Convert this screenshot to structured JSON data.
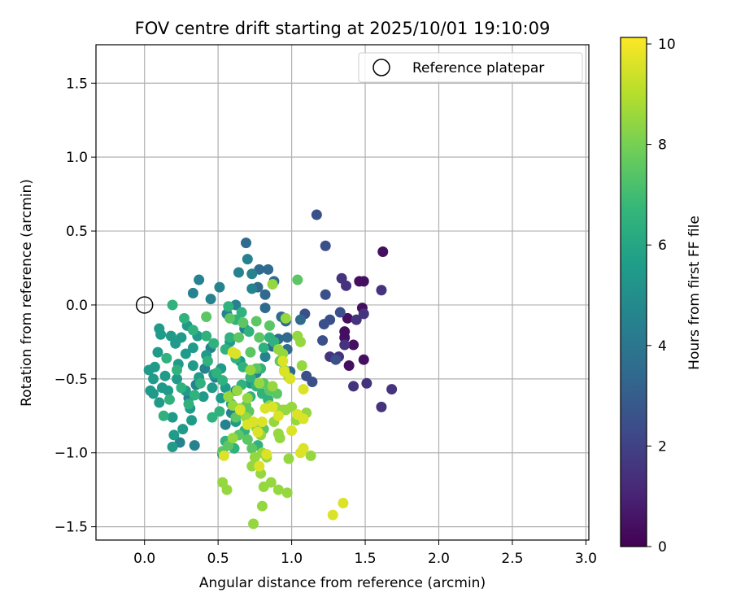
{
  "chart_data": {
    "type": "scatter",
    "title": "FOV centre drift starting at 2025/10/01 19:10:09",
    "xlabel": "Angular distance from reference (arcmin)",
    "ylabel": "Rotation from reference (arcmin)",
    "xlim": [
      -0.33,
      3.02
    ],
    "ylim": [
      -1.59,
      1.76
    ],
    "xticks": [
      0.0,
      0.5,
      1.0,
      1.5,
      2.0,
      2.5,
      3.0
    ],
    "xtick_labels": [
      "0.0",
      "0.5",
      "1.0",
      "1.5",
      "2.0",
      "2.5",
      "3.0"
    ],
    "yticks": [
      -1.5,
      -1.0,
      -0.5,
      0.0,
      0.5,
      1.0,
      1.5
    ],
    "ytick_labels": [
      "−1.5",
      "−1.0",
      "−0.5",
      "0.0",
      "0.5",
      "1.0",
      "1.5"
    ],
    "grid": true,
    "legend": {
      "position": "top-right",
      "entries": [
        "Reference platepar"
      ]
    },
    "reference_point": {
      "x": 0.0,
      "y": 0.0,
      "label": "Reference platepar"
    },
    "colorbar": {
      "label": "Hours from first FF file",
      "min": 0,
      "max": 10.13,
      "ticks": [
        0,
        2,
        4,
        6,
        8,
        10
      ],
      "tick_labels": [
        "0",
        "2",
        "4",
        "6",
        "8",
        "10"
      ],
      "colormap": "viridis",
      "stops": [
        "#440154",
        "#482878",
        "#3e4989",
        "#31688e",
        "#26828e",
        "#1f9e89",
        "#35b779",
        "#6ece58",
        "#b5de2b",
        "#fde725"
      ]
    },
    "series": [
      {
        "name": "hour-0-1",
        "hours": 0.4,
        "points": [
          [
            1.62,
            0.36
          ],
          [
            1.46,
            0.16
          ],
          [
            1.49,
            0.16
          ],
          [
            1.48,
            -0.02
          ],
          [
            1.38,
            -0.09
          ],
          [
            1.36,
            -0.18
          ],
          [
            1.36,
            -0.22
          ],
          [
            1.42,
            -0.27
          ],
          [
            1.49,
            -0.37
          ],
          [
            1.39,
            -0.41
          ]
        ]
      },
      {
        "name": "hour-1-2",
        "hours": 1.5,
        "points": [
          [
            1.61,
            0.1
          ],
          [
            1.49,
            -0.06
          ],
          [
            1.44,
            -0.1
          ],
          [
            1.51,
            -0.53
          ],
          [
            1.68,
            -0.57
          ],
          [
            1.61,
            -0.69
          ],
          [
            1.42,
            -0.55
          ],
          [
            1.36,
            -0.27
          ],
          [
            1.37,
            0.13
          ],
          [
            1.34,
            0.18
          ],
          [
            1.32,
            -0.35
          ],
          [
            1.26,
            -0.35
          ]
        ]
      },
      {
        "name": "hour-2-3",
        "hours": 2.5,
        "points": [
          [
            1.17,
            0.61
          ],
          [
            1.23,
            0.4
          ],
          [
            1.23,
            0.07
          ],
          [
            1.26,
            -0.1
          ],
          [
            1.22,
            -0.13
          ],
          [
            1.21,
            -0.24
          ],
          [
            1.33,
            -0.05
          ],
          [
            1.3,
            -0.37
          ],
          [
            1.14,
            -0.52
          ],
          [
            1.1,
            -0.48
          ],
          [
            1.09,
            -0.06
          ]
        ]
      },
      {
        "name": "hour-3-4",
        "hours": 3.5,
        "points": [
          [
            0.69,
            0.42
          ],
          [
            0.78,
            0.24
          ],
          [
            0.84,
            0.24
          ],
          [
            0.88,
            0.16
          ],
          [
            0.82,
            0.07
          ],
          [
            0.77,
            0.12
          ],
          [
            0.82,
            -0.02
          ],
          [
            0.93,
            -0.08
          ],
          [
            0.96,
            -0.11
          ],
          [
            0.91,
            -0.23
          ],
          [
            0.87,
            -0.28
          ],
          [
            0.97,
            -0.3
          ],
          [
            0.99,
            -0.45
          ],
          [
            1.06,
            -0.1
          ],
          [
            0.97,
            -0.22
          ]
        ]
      },
      {
        "name": "hour-4-5",
        "hours": 4.5,
        "points": [
          [
            0.7,
            0.31
          ],
          [
            0.73,
            0.21
          ],
          [
            0.73,
            0.11
          ],
          [
            0.64,
            0.22
          ],
          [
            0.62,
            0.0
          ],
          [
            0.56,
            -0.06
          ],
          [
            0.51,
            0.12
          ],
          [
            0.45,
            0.04
          ],
          [
            0.37,
            0.17
          ],
          [
            0.33,
            0.08
          ],
          [
            0.45,
            -0.29
          ],
          [
            0.41,
            -0.43
          ],
          [
            0.48,
            -0.49
          ],
          [
            0.35,
            -0.54
          ],
          [
            0.3,
            -0.63
          ],
          [
            0.34,
            -0.95
          ],
          [
            0.24,
            -0.93
          ],
          [
            0.53,
            -1.01
          ],
          [
            0.55,
            -0.81
          ],
          [
            0.59,
            -0.73
          ],
          [
            0.62,
            -0.58
          ],
          [
            0.76,
            -0.46
          ],
          [
            0.82,
            -0.35
          ],
          [
            0.68,
            -0.16
          ]
        ]
      },
      {
        "name": "hour-5-6",
        "hours": 5.5,
        "points": [
          [
            0.1,
            -0.16
          ],
          [
            0.11,
            -0.2
          ],
          [
            0.09,
            -0.32
          ],
          [
            0.07,
            -0.42
          ],
          [
            0.03,
            -0.44
          ],
          [
            0.06,
            -0.5
          ],
          [
            0.04,
            -0.58
          ],
          [
            0.06,
            -0.6
          ],
          [
            0.1,
            -0.66
          ],
          [
            0.16,
            -0.58
          ],
          [
            0.19,
            -0.76
          ],
          [
            0.2,
            -0.88
          ],
          [
            0.19,
            -0.96
          ],
          [
            0.26,
            -0.84
          ],
          [
            0.32,
            -0.78
          ],
          [
            0.28,
            -0.58
          ],
          [
            0.22,
            -0.5
          ],
          [
            0.23,
            -0.4
          ],
          [
            0.28,
            -0.33
          ],
          [
            0.33,
            -0.41
          ],
          [
            0.37,
            -0.49
          ],
          [
            0.33,
            -0.29
          ],
          [
            0.25,
            -0.22
          ],
          [
            0.29,
            -0.14
          ],
          [
            0.36,
            -0.21
          ],
          [
            0.42,
            -0.34
          ],
          [
            0.46,
            -0.56
          ],
          [
            0.52,
            -0.63
          ],
          [
            0.55,
            -0.56
          ],
          [
            0.59,
            -0.67
          ],
          [
            0.62,
            -0.79
          ],
          [
            0.72,
            -0.53
          ],
          [
            0.65,
            -0.38
          ],
          [
            0.58,
            -0.25
          ],
          [
            0.52,
            -0.43
          ],
          [
            0.47,
            -0.47
          ],
          [
            0.4,
            -0.62
          ],
          [
            0.31,
            -0.7
          ],
          [
            0.14,
            -0.48
          ],
          [
            0.12,
            -0.56
          ],
          [
            0.18,
            -0.21
          ],
          [
            0.21,
            -0.26
          ]
        ]
      },
      {
        "name": "hour-6-7",
        "hours": 6.5,
        "points": [
          [
            0.19,
            0.0
          ],
          [
            0.27,
            -0.09
          ],
          [
            0.33,
            -0.17
          ],
          [
            0.42,
            -0.21
          ],
          [
            0.47,
            -0.26
          ],
          [
            0.55,
            -0.3
          ],
          [
            0.62,
            -0.36
          ],
          [
            0.67,
            -0.42
          ],
          [
            0.72,
            -0.49
          ],
          [
            0.76,
            -0.55
          ],
          [
            0.8,
            -0.6
          ],
          [
            0.84,
            -0.64
          ],
          [
            0.57,
            -0.01
          ],
          [
            0.62,
            -0.1
          ],
          [
            0.66,
            -0.05
          ],
          [
            0.71,
            -0.18
          ],
          [
            0.81,
            -0.29
          ],
          [
            0.85,
            -0.22
          ],
          [
            0.88,
            -0.25
          ],
          [
            0.58,
            -0.22
          ],
          [
            0.49,
            -0.46
          ],
          [
            0.43,
            -0.38
          ],
          [
            0.38,
            -0.53
          ],
          [
            0.34,
            -0.61
          ],
          [
            0.3,
            -0.67
          ],
          [
            0.25,
            -0.56
          ],
          [
            0.17,
            -0.64
          ],
          [
            0.13,
            -0.75
          ],
          [
            0.46,
            -0.76
          ],
          [
            0.51,
            -0.72
          ],
          [
            0.55,
            -0.92
          ],
          [
            0.61,
            -0.97
          ],
          [
            0.68,
            -0.85
          ],
          [
            0.77,
            -0.95
          ],
          [
            0.72,
            -0.62
          ],
          [
            0.79,
            -0.43
          ],
          [
            0.66,
            -0.54
          ],
          [
            0.53,
            -0.51
          ],
          [
            0.22,
            -0.44
          ],
          [
            0.15,
            -0.36
          ]
        ]
      },
      {
        "name": "hour-7-8",
        "hours": 7.5,
        "points": [
          [
            0.42,
            -0.08
          ],
          [
            0.58,
            -0.09
          ],
          [
            0.64,
            -0.22
          ],
          [
            0.67,
            -0.12
          ],
          [
            0.76,
            -0.11
          ],
          [
            0.78,
            -0.22
          ],
          [
            0.72,
            -0.32
          ],
          [
            0.76,
            -0.43
          ],
          [
            0.69,
            -0.68
          ],
          [
            0.71,
            -0.72
          ],
          [
            0.62,
            -0.76
          ],
          [
            0.64,
            -0.88
          ],
          [
            0.53,
            -0.99
          ],
          [
            0.57,
            -0.95
          ],
          [
            0.81,
            -0.53
          ],
          [
            0.85,
            -0.58
          ],
          [
            0.9,
            -0.6
          ],
          [
            1.04,
            0.17
          ],
          [
            0.85,
            -0.14
          ],
          [
            0.92,
            -0.38
          ],
          [
            0.81,
            -0.84
          ],
          [
            0.7,
            -0.91
          ],
          [
            0.73,
            -0.97
          ]
        ]
      },
      {
        "name": "hour-8-9",
        "hours": 8.5,
        "points": [
          [
            0.87,
            0.14
          ],
          [
            0.96,
            -0.09
          ],
          [
            1.04,
            -0.21
          ],
          [
            1.06,
            -0.25
          ],
          [
            0.94,
            -0.33
          ],
          [
            0.91,
            -0.3
          ],
          [
            1.07,
            -0.41
          ],
          [
            0.95,
            -0.44
          ],
          [
            0.98,
            -0.49
          ],
          [
            0.87,
            -0.55
          ],
          [
            0.78,
            -0.53
          ],
          [
            0.72,
            -0.44
          ],
          [
            0.63,
            -0.58
          ],
          [
            0.7,
            -0.63
          ],
          [
            0.57,
            -0.62
          ],
          [
            0.6,
            -0.68
          ],
          [
            0.65,
            -0.7
          ],
          [
            0.69,
            -0.76
          ],
          [
            0.73,
            -0.8
          ],
          [
            0.76,
            -0.83
          ],
          [
            0.79,
            -0.88
          ],
          [
            0.8,
            -1.0
          ],
          [
            0.83,
            -1.03
          ],
          [
            0.75,
            -1.03
          ],
          [
            0.73,
            -1.09
          ],
          [
            0.79,
            -1.14
          ],
          [
            0.81,
            -1.23
          ],
          [
            0.86,
            -1.2
          ],
          [
            0.91,
            -1.25
          ],
          [
            0.97,
            -1.27
          ],
          [
            0.98,
            -1.04
          ],
          [
            0.91,
            -0.87
          ],
          [
            0.92,
            -0.9
          ],
          [
            0.88,
            -0.79
          ],
          [
            0.85,
            -0.68
          ],
          [
            0.89,
            -0.69
          ],
          [
            0.96,
            -0.71
          ],
          [
            1.03,
            -0.78
          ],
          [
            1.0,
            -0.69
          ],
          [
            0.94,
            -0.71
          ],
          [
            1.1,
            -0.73
          ],
          [
            1.13,
            -1.02
          ],
          [
            0.53,
            -1.2
          ],
          [
            0.56,
            -1.25
          ],
          [
            0.74,
            -1.48
          ],
          [
            0.8,
            -1.36
          ],
          [
            0.6,
            -0.9
          ]
        ]
      },
      {
        "name": "hour-9-10",
        "hours": 9.6,
        "points": [
          [
            0.94,
            -0.38
          ],
          [
            0.99,
            -0.5
          ],
          [
            0.95,
            -0.45
          ],
          [
            1.08,
            -0.57
          ],
          [
            1.04,
            -0.74
          ],
          [
            1.08,
            -0.77
          ],
          [
            1.08,
            -0.97
          ],
          [
            1.06,
            -1.0
          ],
          [
            1.0,
            -0.85
          ],
          [
            0.91,
            -0.75
          ],
          [
            0.87,
            -0.69
          ],
          [
            0.82,
            -0.7
          ],
          [
            0.74,
            -0.79
          ],
          [
            0.8,
            -0.79
          ],
          [
            0.77,
            -0.86
          ],
          [
            0.7,
            -0.81
          ],
          [
            0.65,
            -0.71
          ],
          [
            0.62,
            -0.33
          ],
          [
            0.6,
            -0.32
          ],
          [
            0.54,
            -1.02
          ],
          [
            1.35,
            -1.34
          ],
          [
            1.28,
            -1.42
          ],
          [
            0.78,
            -1.09
          ],
          [
            0.83,
            -1.01
          ]
        ]
      }
    ]
  }
}
